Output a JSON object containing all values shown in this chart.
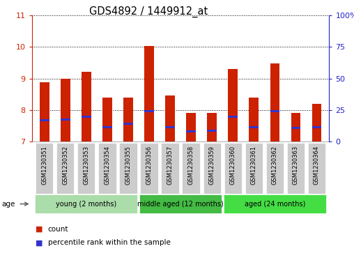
{
  "title": "GDS4892 / 1449912_at",
  "samples": [
    "GSM1230351",
    "GSM1230352",
    "GSM1230353",
    "GSM1230354",
    "GSM1230355",
    "GSM1230356",
    "GSM1230357",
    "GSM1230358",
    "GSM1230359",
    "GSM1230360",
    "GSM1230361",
    "GSM1230362",
    "GSM1230363",
    "GSM1230364"
  ],
  "count_values": [
    8.88,
    9.0,
    9.2,
    8.4,
    8.4,
    10.02,
    8.45,
    7.92,
    7.92,
    9.3,
    8.4,
    9.48,
    7.9,
    8.2
  ],
  "percentile_values": [
    7.68,
    7.7,
    7.78,
    7.45,
    7.57,
    7.97,
    7.45,
    7.32,
    7.34,
    7.78,
    7.46,
    7.97,
    7.44,
    7.45
  ],
  "ymin": 7,
  "ymax": 11,
  "yticks": [
    7,
    8,
    9,
    10,
    11
  ],
  "right_yticks": [
    0,
    25,
    50,
    75,
    100
  ],
  "bar_color": "#cc2200",
  "percentile_color": "#3333cc",
  "bar_width": 0.45,
  "group_defs": [
    {
      "label": "young (2 months)",
      "start": 0,
      "end": 4,
      "color": "#aaddaa"
    },
    {
      "label": "middle aged (12 months)",
      "start": 5,
      "end": 8,
      "color": "#44bb44"
    },
    {
      "label": "aged (24 months)",
      "start": 9,
      "end": 13,
      "color": "#44dd44"
    }
  ],
  "age_label": "age",
  "legend_count_label": "count",
  "legend_pct_label": "percentile rank within the sample",
  "tick_color_left": "#cc2200",
  "tick_color_right": "#2222cc",
  "grid_color": "#000000",
  "sample_box_color": "#cccccc",
  "sample_box_edge": "#aaaaaa"
}
